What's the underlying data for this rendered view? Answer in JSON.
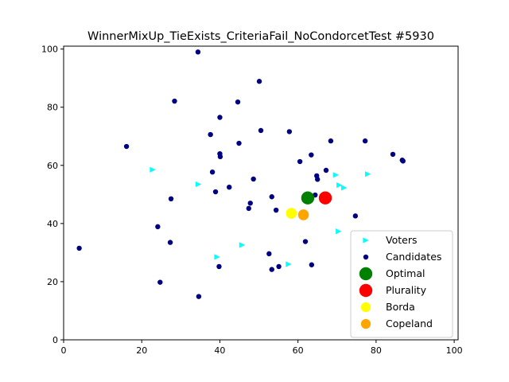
{
  "chart_data": {
    "type": "scatter",
    "title": "WinnerMixUp_TieExists_CriteriaFail_NoCondorcetTest #5930",
    "xlabel": "",
    "ylabel": "",
    "xlim": [
      0,
      101
    ],
    "ylim": [
      0,
      101
    ],
    "xticks": [
      0,
      20,
      40,
      60,
      80,
      100
    ],
    "yticks": [
      0,
      20,
      40,
      60,
      80,
      100
    ],
    "grid": false,
    "legend_position": "lower-right",
    "series": [
      {
        "name": "Voters",
        "marker": "triangle-right",
        "color": "#00ffff",
        "points": [
          [
            22.8,
            58.5
          ],
          [
            34.5,
            53.5
          ],
          [
            69.7,
            56.7
          ],
          [
            70.6,
            53.2
          ],
          [
            71.8,
            52.3
          ],
          [
            77.9,
            57.0
          ],
          [
            70.4,
            37.3
          ],
          [
            45.7,
            32.6
          ],
          [
            39.3,
            28.5
          ],
          [
            57.6,
            26.0
          ]
        ]
      },
      {
        "name": "Candidates",
        "marker": "circle",
        "color": "#000080",
        "points": [
          [
            34.4,
            99.0
          ],
          [
            50.1,
            88.9
          ],
          [
            28.4,
            82.1
          ],
          [
            44.6,
            81.8
          ],
          [
            40.0,
            76.5
          ],
          [
            37.6,
            70.6
          ],
          [
            50.5,
            72.0
          ],
          [
            57.8,
            71.6
          ],
          [
            68.4,
            68.4
          ],
          [
            77.2,
            68.4
          ],
          [
            16.1,
            66.5
          ],
          [
            44.9,
            67.6
          ],
          [
            40.0,
            64.0
          ],
          [
            40.1,
            63.0
          ],
          [
            63.4,
            63.6
          ],
          [
            84.3,
            63.8
          ],
          [
            86.7,
            61.8
          ],
          [
            86.9,
            61.5
          ],
          [
            60.5,
            61.3
          ],
          [
            38.1,
            57.7
          ],
          [
            67.2,
            58.3
          ],
          [
            64.8,
            56.4
          ],
          [
            65.0,
            55.2
          ],
          [
            48.6,
            55.3
          ],
          [
            42.4,
            52.5
          ],
          [
            38.9,
            50.9
          ],
          [
            27.5,
            48.5
          ],
          [
            53.3,
            49.2
          ],
          [
            64.4,
            49.8
          ],
          [
            47.8,
            47.0
          ],
          [
            47.4,
            45.2
          ],
          [
            54.4,
            44.6
          ],
          [
            74.7,
            42.6
          ],
          [
            24.1,
            38.9
          ],
          [
            27.3,
            33.5
          ],
          [
            61.9,
            33.8
          ],
          [
            52.6,
            29.6
          ],
          [
            55.1,
            25.2
          ],
          [
            63.5,
            25.8
          ],
          [
            39.8,
            25.2
          ],
          [
            53.3,
            24.2
          ],
          [
            24.7,
            19.8
          ],
          [
            34.6,
            14.9
          ],
          [
            4.0,
            31.5
          ]
        ]
      },
      {
        "name": "Optimal",
        "marker": "circle-large",
        "color": "#008000",
        "points": [
          [
            62.5,
            48.8
          ]
        ]
      },
      {
        "name": "Plurality",
        "marker": "circle-large",
        "color": "#ff0000",
        "points": [
          [
            67.0,
            48.8
          ]
        ]
      },
      {
        "name": "Borda",
        "marker": "circle-medium",
        "color": "#ffff00",
        "points": [
          [
            58.3,
            43.5
          ]
        ]
      },
      {
        "name": "Copeland",
        "marker": "circle-medium",
        "color": "#ffa500",
        "points": [
          [
            61.4,
            43.0
          ]
        ]
      }
    ]
  }
}
